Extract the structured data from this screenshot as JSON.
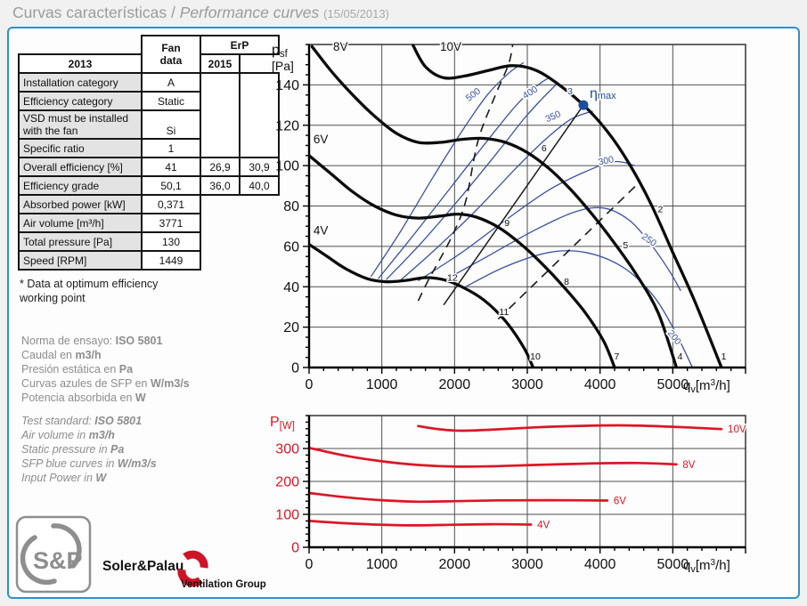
{
  "title": {
    "main": "Curvas características / ",
    "italic": "Performance curves ",
    "date": "(15/05/2013)"
  },
  "colors": {
    "frame_blue": "#2e90cc",
    "curve_black": "#0b0b0b",
    "sfp_blue": "#3a53a4",
    "eta_blue": "#1c4f9e",
    "red": "#dd1526",
    "grid_gray": "#4f4f4f",
    "title_gray": "#9b9b9b",
    "info_gray": "#8d8d8d"
  },
  "table": {
    "header": {
      "fan": "Fan\ndata",
      "erp": "ErP",
      "y2013": "2013",
      "y2015": "2015"
    },
    "rows": [
      {
        "label": "Installation category",
        "fan": "A"
      },
      {
        "label": "Efficiency category",
        "fan": "Static"
      },
      {
        "label": "VSD must be installed with the fan",
        "fan": "Si"
      },
      {
        "label": "Specific ratio",
        "fan": "1"
      },
      {
        "label": "Overall efficiency [%]",
        "fan": "41",
        "erp2013": "26,9",
        "erp2015": "30,9"
      },
      {
        "label": "Efficiency grade",
        "fan": "50,1",
        "erp2013": "36,0",
        "erp2015": "40,0"
      },
      {
        "label": "Absorbed power [kW]",
        "fan": "0,371"
      },
      {
        "label": "Air volume [m³/h]",
        "fan": "3771"
      },
      {
        "label": "Total pressure [Pa]",
        "fan": "130"
      },
      {
        "label": "Speed [RPM]",
        "fan": "1449"
      }
    ],
    "footnote": "* Data at optimum efficiency\nworking point"
  },
  "info_es": [
    {
      "pre": "Norma de ensayo: ",
      "unit": "ISO 5801"
    },
    {
      "pre": "Caudal en ",
      "unit": "m3/h"
    },
    {
      "pre": "Presión estática en ",
      "unit": "Pa"
    },
    {
      "pre": "Curvas azules de SFP en ",
      "unit": "W/m3/s"
    },
    {
      "pre": "Potencia absorbida en ",
      "unit": "W"
    }
  ],
  "info_en": [
    {
      "pre": "Test standard: ",
      "unit": "ISO 5801"
    },
    {
      "pre": "Air volume in ",
      "unit": "m3/h"
    },
    {
      "pre": "Static pressure in ",
      "unit": "Pa"
    },
    {
      "pre": "SFP blue curves in ",
      "unit": "W/m3/s"
    },
    {
      "pre": "Input Power in ",
      "unit": "W"
    }
  ],
  "logo": {
    "monogram": "S&P",
    "brand": "Soler&Palau",
    "group": "Ventilation Group"
  },
  "chart_data": [
    {
      "type": "line",
      "name": "static-pressure-curves",
      "xlabel": {
        "sym": "q",
        "sub": "v",
        "unit_pre": "[m",
        "sup": "3",
        "unit_post": "/h]"
      },
      "ylabel": {
        "sym": "p",
        "sub": "sf",
        "unit": "[Pa]"
      },
      "x_ticks": [
        0,
        1000,
        2000,
        3000,
        4000,
        5000
      ],
      "y_ticks": [
        0,
        20,
        40,
        60,
        80,
        100,
        120,
        140
      ],
      "xlim": [
        0,
        6000
      ],
      "ylim": [
        0,
        160
      ],
      "series": [
        {
          "name": "4V",
          "label_q": 60,
          "label_p": 66,
          "points": [
            [
              0,
              61
            ],
            [
              250,
              55
            ],
            [
              500,
              49
            ],
            [
              800,
              44
            ],
            [
              1050,
              42.5
            ],
            [
              1300,
              43
            ],
            [
              1600,
              44.5
            ],
            [
              1850,
              43.5
            ],
            [
              2100,
              40
            ],
            [
              2400,
              33.5
            ],
            [
              2700,
              23
            ],
            [
              2950,
              10
            ],
            [
              3080,
              0
            ]
          ]
        },
        {
          "name": "6V",
          "label_q": 60,
          "label_p": 111,
          "points": [
            [
              0,
              105
            ],
            [
              300,
              96
            ],
            [
              600,
              87
            ],
            [
              900,
              80
            ],
            [
              1200,
              75.5
            ],
            [
              1500,
              74
            ],
            [
              1800,
              75
            ],
            [
              2050,
              76
            ],
            [
              2300,
              74.5
            ],
            [
              2600,
              69.5
            ],
            [
              2900,
              61.5
            ],
            [
              3200,
              51.5
            ],
            [
              3500,
              40
            ],
            [
              3800,
              27
            ],
            [
              4050,
              13
            ],
            [
              4200,
              0
            ]
          ]
        },
        {
          "name": "8V",
          "label_q": 330,
          "label_p": 157,
          "points": [
            [
              40,
              159
            ],
            [
              300,
              147
            ],
            [
              600,
              135
            ],
            [
              900,
              124.5
            ],
            [
              1200,
              116
            ],
            [
              1500,
              111.5
            ],
            [
              1800,
              111.5
            ],
            [
              2100,
              113
            ],
            [
              2400,
              113.5
            ],
            [
              2700,
              111.5
            ],
            [
              3000,
              106.5
            ],
            [
              3300,
              98.5
            ],
            [
              3600,
              88
            ],
            [
              3900,
              75.5
            ],
            [
              4200,
              61.5
            ],
            [
              4500,
              46
            ],
            [
              4800,
              27
            ],
            [
              5050,
              0
            ]
          ]
        },
        {
          "name": "10V",
          "label_q": 1800,
          "label_p": 157,
          "points": [
            [
              1430,
              159.5
            ],
            [
              1600,
              149
            ],
            [
              1850,
              143.5
            ],
            [
              2150,
              144.5
            ],
            [
              2450,
              147
            ],
            [
              2780,
              149.5
            ],
            [
              3100,
              147.5
            ],
            [
              3400,
              141
            ],
            [
              3771,
              130
            ],
            [
              4100,
              117
            ],
            [
              4400,
              101
            ],
            [
              4700,
              81
            ],
            [
              5000,
              57
            ],
            [
              5300,
              33
            ],
            [
              5670,
              0
            ]
          ]
        }
      ],
      "sfp_curves": [
        {
          "label": "500",
          "label_q": 2280,
          "label_p": 134,
          "angle": -38,
          "points": [
            [
              850,
              45
            ],
            [
              1250,
              67
            ],
            [
              1700,
              94
            ],
            [
              2100,
              117
            ],
            [
              2450,
              135
            ],
            [
              2750,
              146
            ],
            [
              2950,
              151
            ]
          ]
        },
        {
          "label": "",
          "label_q": 0,
          "label_p": 0,
          "angle": 0,
          "points": [
            [
              950,
              44
            ],
            [
              1400,
              64
            ],
            [
              1900,
              87
            ],
            [
              2400,
              110
            ],
            [
              2850,
              130
            ],
            [
              3150,
              140
            ],
            [
              3320,
              144
            ]
          ]
        },
        {
          "label": "400",
          "label_q": 3060,
          "label_p": 135,
          "angle": -33,
          "points": [
            [
              1060,
              43.5
            ],
            [
              1550,
              62
            ],
            [
              2100,
              85
            ],
            [
              2600,
              107
            ],
            [
              2950,
              123
            ],
            [
              3200,
              133
            ],
            [
              3420,
              141
            ]
          ]
        },
        {
          "label": "350",
          "label_q": 3370,
          "label_p": 123,
          "angle": -24,
          "points": [
            [
              1250,
              43
            ],
            [
              1750,
              59
            ],
            [
              2300,
              78
            ],
            [
              2850,
              99
            ],
            [
              3250,
              113
            ],
            [
              3600,
              123
            ],
            [
              3900,
              127
            ]
          ]
        },
        {
          "label": "300",
          "label_q": 4090,
          "label_p": 101,
          "angle": -12,
          "points": [
            [
              1500,
              43
            ],
            [
              2100,
              57
            ],
            [
              2700,
              73
            ],
            [
              3300,
              88
            ],
            [
              3800,
              97
            ],
            [
              4200,
              102
            ],
            [
              4480,
              100
            ]
          ]
        },
        {
          "label": "250",
          "label_q": 4650,
          "label_p": 62,
          "angle": 35,
          "points": [
            [
              1850,
              43
            ],
            [
              2500,
              56
            ],
            [
              3100,
              68
            ],
            [
              3650,
              77
            ],
            [
              4050,
              79
            ],
            [
              4400,
              73
            ],
            [
              4700,
              61
            ],
            [
              4950,
              48
            ],
            [
              5110,
              38
            ]
          ]
        },
        {
          "label": "200",
          "label_q": 4990,
          "label_p": 14,
          "angle": 52,
          "points": [
            [
              2150,
              40
            ],
            [
              2700,
              50
            ],
            [
              3300,
              57
            ],
            [
              3800,
              57
            ],
            [
              4300,
              50
            ],
            [
              4700,
              37
            ],
            [
              5000,
              20
            ],
            [
              5270,
              0
            ]
          ]
        }
      ],
      "solid_line": [
        [
          1850,
          31
        ],
        [
          3771,
          130
        ]
      ],
      "dashed_lines": [
        [
          [
            1500,
            33
          ],
          [
            1650,
            44
          ],
          [
            1950,
            64
          ],
          [
            2150,
            82
          ],
          [
            2320,
            112
          ],
          [
            2550,
            134
          ],
          [
            2740,
            150
          ],
          [
            2800,
            160
          ]
        ],
        [
          [
            2600,
            24
          ],
          [
            4520,
            91
          ]
        ]
      ],
      "eta_max": {
        "q": 3771,
        "p": 130,
        "sup": "3",
        "sym": "η",
        "sub": "max"
      },
      "point_labels": [
        {
          "t": "1",
          "q": 5700,
          "p": 4
        },
        {
          "t": "2",
          "q": 4830,
          "p": 77
        },
        {
          "t": "4",
          "q": 5100,
          "p": 4
        },
        {
          "t": "5",
          "q": 4350,
          "p": 59
        },
        {
          "t": "6",
          "q": 3230,
          "p": 107
        },
        {
          "t": "7",
          "q": 4230,
          "p": 4
        },
        {
          "t": "8",
          "q": 3540,
          "p": 41
        },
        {
          "t": "9",
          "q": 2720,
          "p": 70
        },
        {
          "t": "10",
          "q": 3110,
          "p": 4
        },
        {
          "t": "11",
          "q": 2680,
          "p": 26
        },
        {
          "t": "12",
          "q": 1970,
          "p": 43
        }
      ]
    },
    {
      "type": "line",
      "name": "input-power-curves",
      "xlabel": {
        "sym": "q",
        "sub": "v",
        "unit_pre": "[m",
        "sup": "3",
        "unit_post": "/h]"
      },
      "ylabel": {
        "sym": "P",
        "unit": "[W]"
      },
      "x_ticks": [
        0,
        1000,
        2000,
        3000,
        4000,
        5000
      ],
      "y_ticks": [
        0,
        100,
        200,
        300
      ],
      "xlim": [
        0,
        6000
      ],
      "ylim": [
        0,
        400
      ],
      "series": [
        {
          "name": "4V",
          "points": [
            [
              0,
              80
            ],
            [
              500,
              73
            ],
            [
              1000,
              68.5
            ],
            [
              1400,
              66.5
            ],
            [
              1900,
              68
            ],
            [
              2500,
              70
            ],
            [
              3050,
              69
            ]
          ]
        },
        {
          "name": "6V",
          "points": [
            [
              0,
              165
            ],
            [
              500,
              152
            ],
            [
              1000,
              143
            ],
            [
              1500,
              138.5
            ],
            [
              2000,
              140
            ],
            [
              2600,
              142.5
            ],
            [
              3300,
              143
            ],
            [
              4100,
              142
            ]
          ]
        },
        {
          "name": "8V",
          "points": [
            [
              0,
              302
            ],
            [
              500,
              278
            ],
            [
              1000,
              261
            ],
            [
              1500,
              250
            ],
            [
              2000,
              245
            ],
            [
              2500,
              246
            ],
            [
              3100,
              250
            ],
            [
              3800,
              254
            ],
            [
              4500,
              256
            ],
            [
              5050,
              252
            ]
          ]
        },
        {
          "name": "10V",
          "points": [
            [
              1500,
              368
            ],
            [
              1800,
              358
            ],
            [
              2100,
              354
            ],
            [
              2500,
              357
            ],
            [
              3100,
              364
            ],
            [
              3800,
              369
            ],
            [
              4400,
              370
            ],
            [
              5000,
              366
            ],
            [
              5670,
              359
            ]
          ]
        }
      ]
    }
  ]
}
